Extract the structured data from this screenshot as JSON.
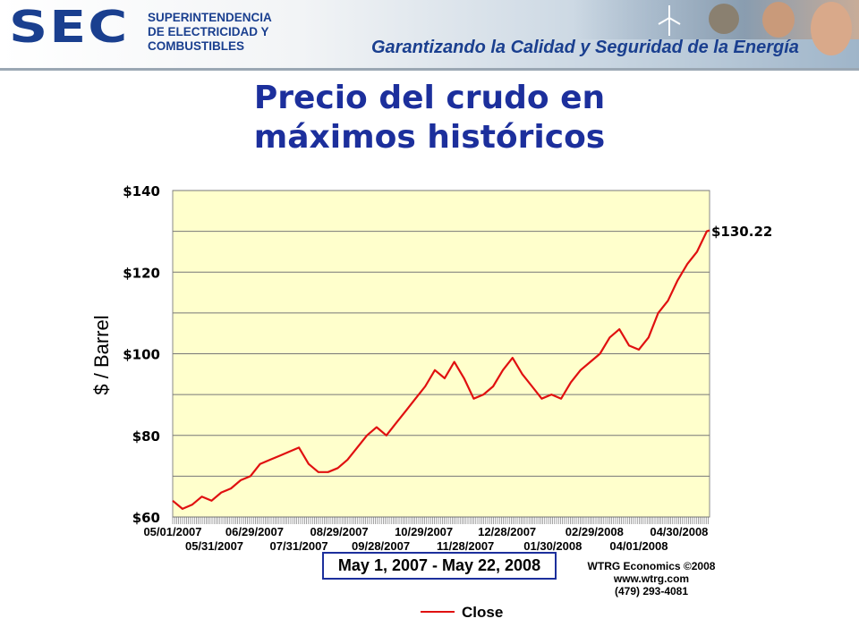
{
  "header": {
    "logo_letters": "SEC",
    "agency_lines": [
      "SUPERINTENDENCIA",
      "DE ELECTRICIDAD Y",
      "COMBUSTIBLES"
    ],
    "tagline": "Garantizando la Calidad y Seguridad de la Energía",
    "brand_color": "#1a3f8f"
  },
  "slide": {
    "title_line1": "Precio del crudo en",
    "title_line2": "máximos históricos",
    "title_color": "#1c2f9c"
  },
  "chart_data": {
    "type": "line",
    "title": "",
    "ylabel": "$ / Barrel",
    "xlabel": "",
    "ylim": [
      60,
      140
    ],
    "yticks": [
      60,
      80,
      100,
      120,
      140
    ],
    "ytick_labels": [
      "$60",
      "$80",
      "$100",
      "$120",
      "$140"
    ],
    "grid": true,
    "plot_background": "#ffffcc",
    "xtick_labels_row1": [
      "05/01/2007",
      "06/29/2007",
      "08/29/2007",
      "10/29/2007",
      "12/28/2007",
      "02/29/2008",
      "04/30/2008"
    ],
    "xtick_labels_row2": [
      "05/31/2007",
      "07/31/2007",
      "09/28/2007",
      "11/28/2007",
      "01/30/2008",
      "04/01/2008"
    ],
    "xrange": [
      "2007-05-01",
      "2008-05-22"
    ],
    "series": [
      {
        "name": "Close",
        "color": "#e01010",
        "x": [
          "2007-05-01",
          "2007-05-08",
          "2007-05-15",
          "2007-05-22",
          "2007-05-29",
          "2007-06-05",
          "2007-06-12",
          "2007-06-19",
          "2007-06-26",
          "2007-07-03",
          "2007-07-10",
          "2007-07-17",
          "2007-07-24",
          "2007-07-31",
          "2007-08-07",
          "2007-08-14",
          "2007-08-21",
          "2007-08-28",
          "2007-09-04",
          "2007-09-11",
          "2007-09-18",
          "2007-09-25",
          "2007-10-02",
          "2007-10-09",
          "2007-10-16",
          "2007-10-23",
          "2007-10-30",
          "2007-11-06",
          "2007-11-13",
          "2007-11-20",
          "2007-11-27",
          "2007-12-04",
          "2007-12-11",
          "2007-12-18",
          "2007-12-25",
          "2008-01-01",
          "2008-01-08",
          "2008-01-15",
          "2008-01-22",
          "2008-01-29",
          "2008-02-05",
          "2008-02-12",
          "2008-02-19",
          "2008-02-26",
          "2008-03-04",
          "2008-03-11",
          "2008-03-18",
          "2008-03-25",
          "2008-04-01",
          "2008-04-08",
          "2008-04-15",
          "2008-04-22",
          "2008-04-29",
          "2008-05-06",
          "2008-05-13",
          "2008-05-20",
          "2008-05-22"
        ],
        "values": [
          64,
          62,
          63,
          65,
          64,
          66,
          67,
          69,
          70,
          73,
          74,
          75,
          76,
          77,
          73,
          71,
          71,
          72,
          74,
          77,
          80,
          82,
          80,
          83,
          86,
          89,
          92,
          96,
          94,
          98,
          94,
          89,
          90,
          92,
          96,
          99,
          95,
          92,
          89,
          90,
          89,
          93,
          96,
          98,
          100,
          104,
          106,
          102,
          101,
          104,
          110,
          113,
          118,
          122,
          125,
          130,
          130.22
        ]
      }
    ],
    "annotation": "$130.22"
  },
  "footer": {
    "date_range": "May 1, 2007 - May 22, 2008",
    "credit_line1": "WTRG Economics  ©2008",
    "credit_line2": "www.wtrg.com",
    "credit_line3": "(479) 293-4081",
    "legend_label": "Close"
  }
}
